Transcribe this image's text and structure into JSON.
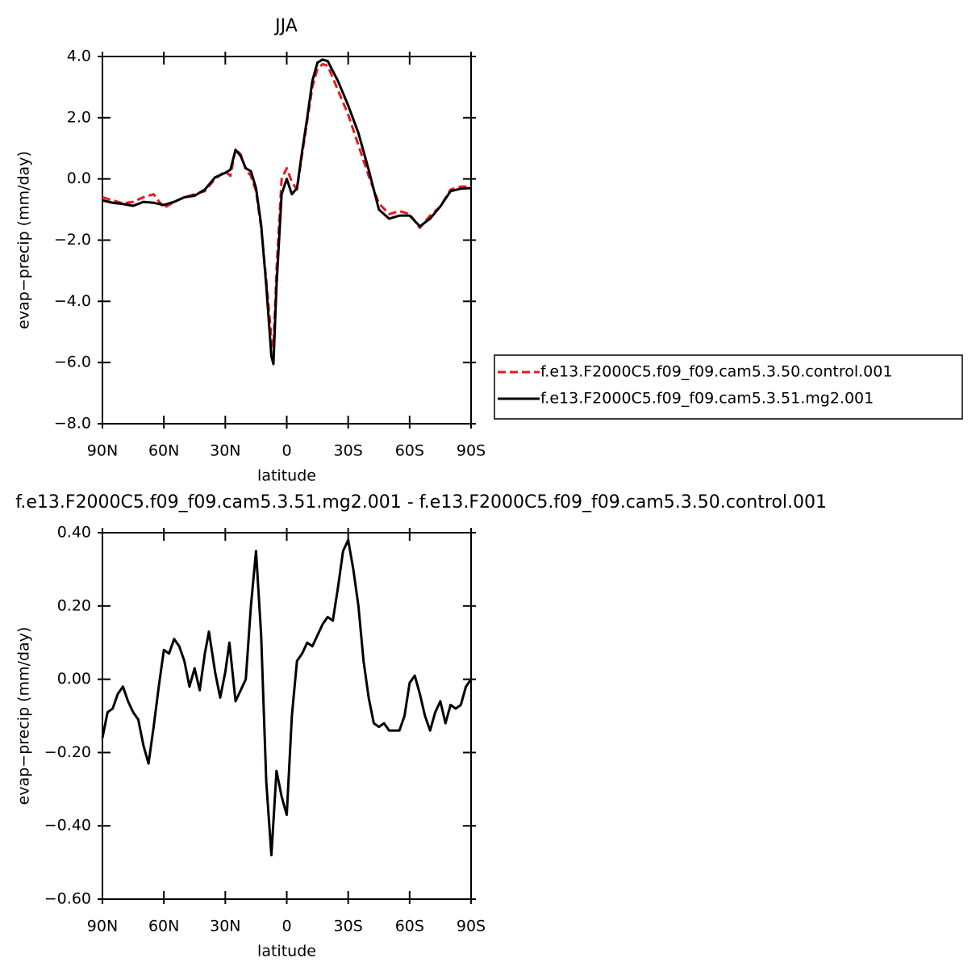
{
  "chart_data": [
    {
      "type": "line",
      "title": "JJA",
      "xlabel": "latitude",
      "ylabel": "evap−precip (mm/day)",
      "x": [
        90,
        85,
        80,
        75,
        70,
        65,
        60,
        55,
        50,
        45,
        40,
        35,
        30,
        27.5,
        25,
        22.5,
        20,
        17.5,
        15,
        12.5,
        10,
        7.5,
        6.5,
        5,
        2.5,
        0,
        -2.5,
        -5,
        -7.5,
        -10,
        -12.5,
        -15,
        -17.5,
        -20,
        -25,
        -30,
        -35,
        -40,
        -45,
        -50,
        -55,
        -60,
        -65,
        -70,
        -75,
        -80,
        -85,
        -90
      ],
      "series": [
        {
          "name": "f.e13.F2000C5.f09_f09.cam5.3.50.control.001",
          "color": "#e8191d",
          "style": "dashed",
          "values": [
            -0.6,
            -0.7,
            -0.8,
            -0.75,
            -0.6,
            -0.5,
            -0.95,
            -0.75,
            -0.6,
            -0.5,
            -0.4,
            0.0,
            0.25,
            0.1,
            0.98,
            0.8,
            0.3,
            0.1,
            -0.4,
            -1.6,
            -3.3,
            -5.2,
            -5.5,
            -3.0,
            0.0,
            0.35,
            -0.1,
            -0.35,
            0.8,
            1.9,
            3.0,
            3.6,
            3.75,
            3.7,
            2.9,
            2.1,
            1.1,
            0.1,
            -0.8,
            -1.15,
            -1.05,
            -1.15,
            -1.6,
            -1.2,
            -0.9,
            -0.35,
            -0.25,
            -0.25
          ]
        },
        {
          "name": "f.e13.F2000C5.f09_f09.cam5.3.51.mg2.001",
          "color": "#000000",
          "style": "solid",
          "values": [
            -0.7,
            -0.78,
            -0.82,
            -0.88,
            -0.75,
            -0.78,
            -0.85,
            -0.75,
            -0.6,
            -0.55,
            -0.35,
            0.05,
            0.2,
            0.3,
            0.95,
            0.75,
            0.35,
            0.25,
            -0.3,
            -1.5,
            -3.5,
            -5.8,
            -6.05,
            -3.5,
            -0.5,
            0.0,
            -0.5,
            -0.3,
            0.9,
            2.0,
            3.2,
            3.8,
            3.9,
            3.85,
            3.2,
            2.4,
            1.5,
            0.3,
            -1.0,
            -1.3,
            -1.2,
            -1.2,
            -1.55,
            -1.3,
            -0.9,
            -0.4,
            -0.32,
            -0.3
          ]
        }
      ],
      "legend": "right",
      "xlim": [
        90,
        -90
      ],
      "xticks": [
        {
          "value": 90,
          "label": "90N"
        },
        {
          "value": 60,
          "label": "60N"
        },
        {
          "value": 30,
          "label": "30N"
        },
        0,
        {
          "value": -30,
          "label": "30S"
        },
        {
          "value": -60,
          "label": "60S"
        },
        {
          "value": -90,
          "label": "90S"
        }
      ],
      "ylim": [
        -8,
        4
      ],
      "yticks": [
        {
          "value": 4,
          "label": "4.0"
        },
        {
          "value": 2,
          "label": "2.0"
        },
        {
          "value": 0,
          "label": "0.0"
        },
        {
          "value": -2,
          "label": "−2.0"
        },
        {
          "value": -4,
          "label": "−4.0"
        },
        {
          "value": -6,
          "label": "−6.0"
        },
        {
          "value": -8,
          "label": "−8.0"
        }
      ]
    },
    {
      "type": "line",
      "title": "f.e13.F2000C5.f09_f09.cam5.3.51.mg2.001 - f.e13.F2000C5.f09_f09.cam5.3.50.control.001",
      "xlabel": "latitude",
      "ylabel": "evap−precip (mm/day)",
      "x": [
        90,
        87.5,
        85,
        82.5,
        80,
        77.5,
        75,
        72.5,
        70,
        67.5,
        65,
        62.5,
        60,
        57.5,
        55,
        52.5,
        50,
        47.5,
        45,
        42.5,
        40,
        38,
        35,
        32.5,
        30,
        28,
        25,
        22.5,
        20,
        17.5,
        15,
        12.5,
        10,
        7.5,
        5,
        2.5,
        0,
        -2.5,
        -5,
        -7.5,
        -10,
        -12.5,
        -15,
        -17.5,
        -20,
        -22.5,
        -25,
        -27.5,
        -30,
        -32.5,
        -35,
        -37.5,
        -40,
        -42.5,
        -45,
        -47.5,
        -50,
        -52.5,
        -55,
        -57.5,
        -60,
        -62.5,
        -65,
        -67.5,
        -70,
        -72.5,
        -75,
        -77.5,
        -80,
        -82.5,
        -85,
        -87.5,
        -90
      ],
      "values": [
        -0.16,
        -0.09,
        -0.08,
        -0.04,
        -0.02,
        -0.06,
        -0.09,
        -0.11,
        -0.18,
        -0.23,
        -0.13,
        -0.02,
        0.08,
        0.07,
        0.11,
        0.09,
        0.05,
        -0.02,
        0.03,
        -0.03,
        0.07,
        0.13,
        0.02,
        -0.05,
        0.02,
        0.1,
        -0.06,
        -0.03,
        0.0,
        0.2,
        0.35,
        0.12,
        -0.28,
        -0.48,
        -0.25,
        -0.32,
        -0.37,
        -0.1,
        0.05,
        0.07,
        0.1,
        0.09,
        0.12,
        0.15,
        0.17,
        0.16,
        0.25,
        0.35,
        0.38,
        0.3,
        0.2,
        0.05,
        -0.05,
        -0.12,
        -0.13,
        -0.12,
        -0.14,
        -0.14,
        -0.14,
        -0.1,
        -0.01,
        0.01,
        -0.04,
        -0.1,
        -0.14,
        -0.09,
        -0.06,
        -0.12,
        -0.07,
        -0.08,
        -0.07,
        -0.02,
        0.0
      ],
      "color": "#000000",
      "xlim": [
        90,
        -90
      ],
      "xticks": [
        {
          "value": 90,
          "label": "90N"
        },
        {
          "value": 60,
          "label": "60N"
        },
        {
          "value": 30,
          "label": "30N"
        },
        0,
        {
          "value": -30,
          "label": "30S"
        },
        {
          "value": -60,
          "label": "60S"
        },
        {
          "value": -90,
          "label": "90S"
        }
      ],
      "ylim": [
        -0.6,
        0.4
      ],
      "yticks": [
        {
          "value": 0.4,
          "label": "0.40"
        },
        {
          "value": 0.2,
          "label": "0.20"
        },
        {
          "value": 0,
          "label": "0.00"
        },
        {
          "value": -0.2,
          "label": "−0.20"
        },
        {
          "value": -0.4,
          "label": "−0.40"
        },
        {
          "value": -0.6,
          "label": "−0.60"
        }
      ]
    }
  ]
}
